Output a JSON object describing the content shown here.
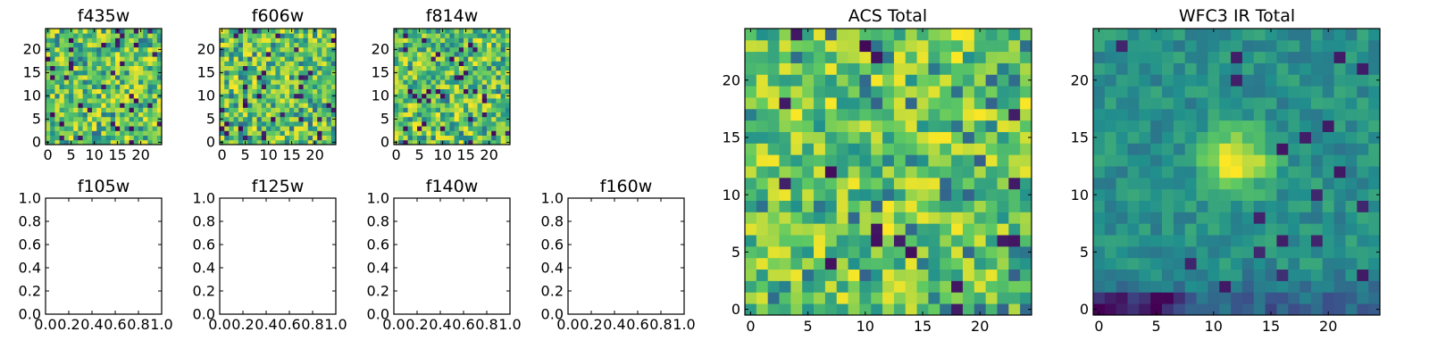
{
  "figure": {
    "type": "figure",
    "description_free": true
  },
  "colormap": {
    "name": "viridis",
    "stops": [
      "#440154",
      "#3b528b",
      "#21908d",
      "#5ec962",
      "#fde725"
    ]
  },
  "chart_data": [
    {
      "id": "f435w",
      "type": "heatmap",
      "title": "f435w",
      "grid": [
        25,
        25
      ],
      "seed": 11,
      "dist": "noise",
      "xlim": [
        0,
        25
      ],
      "ylim": [
        0,
        25
      ],
      "xticks": [
        "0",
        "5",
        "10",
        "15",
        "20"
      ],
      "yticks": [
        "0",
        "5",
        "10",
        "15",
        "20"
      ]
    },
    {
      "id": "f606w",
      "type": "heatmap",
      "title": "f606w",
      "grid": [
        25,
        25
      ],
      "seed": 23,
      "dist": "noise",
      "xlim": [
        0,
        25
      ],
      "ylim": [
        0,
        25
      ],
      "xticks": [
        "0",
        "5",
        "10",
        "15",
        "20"
      ],
      "yticks": [
        "0",
        "5",
        "10",
        "15",
        "20"
      ]
    },
    {
      "id": "f814w",
      "type": "heatmap",
      "title": "f814w",
      "grid": [
        25,
        25
      ],
      "seed": 37,
      "dist": "noise",
      "xlim": [
        0,
        25
      ],
      "ylim": [
        0,
        25
      ],
      "xticks": [
        "0",
        "5",
        "10",
        "15",
        "20"
      ],
      "yticks": [
        "0",
        "5",
        "10",
        "15",
        "20"
      ]
    },
    {
      "id": "f105w",
      "type": "empty",
      "title": "f105w",
      "xlim": [
        0,
        1
      ],
      "ylim": [
        0,
        1
      ],
      "xticks": [
        "0.0",
        "0.2",
        "0.4",
        "0.6",
        "0.8",
        "1.0"
      ],
      "yticks": [
        "0.0",
        "0.2",
        "0.4",
        "0.6",
        "0.8",
        "1.0"
      ]
    },
    {
      "id": "f125w",
      "type": "empty",
      "title": "f125w",
      "xlim": [
        0,
        1
      ],
      "ylim": [
        0,
        1
      ],
      "xticks": [
        "0.0",
        "0.2",
        "0.4",
        "0.6",
        "0.8",
        "1.0"
      ],
      "yticks": [
        "0.0",
        "0.2",
        "0.4",
        "0.6",
        "0.8",
        "1.0"
      ]
    },
    {
      "id": "f140w",
      "type": "empty",
      "title": "f140w",
      "xlim": [
        0,
        1
      ],
      "ylim": [
        0,
        1
      ],
      "xticks": [
        "0.0",
        "0.2",
        "0.4",
        "0.6",
        "0.8",
        "1.0"
      ],
      "yticks": [
        "0.0",
        "0.2",
        "0.4",
        "0.6",
        "0.8",
        "1.0"
      ]
    },
    {
      "id": "f160w",
      "type": "empty",
      "title": "f160w",
      "xlim": [
        0,
        1
      ],
      "ylim": [
        0,
        1
      ],
      "xticks": [
        "0.0",
        "0.2",
        "0.4",
        "0.6",
        "0.8",
        "1.0"
      ],
      "yticks": [
        "0.0",
        "0.2",
        "0.4",
        "0.6",
        "0.8",
        "1.0"
      ]
    },
    {
      "id": "acs_total",
      "type": "heatmap",
      "title": "ACS Total",
      "grid": [
        25,
        25
      ],
      "seed": 53,
      "dist": "acs",
      "xlim": [
        0,
        25
      ],
      "ylim": [
        0,
        25
      ],
      "xticks": [
        "0",
        "5",
        "10",
        "15",
        "20"
      ],
      "yticks": [
        "0",
        "5",
        "10",
        "15",
        "20"
      ]
    },
    {
      "id": "wfc3_ir_total",
      "type": "heatmap",
      "title": "WFC3 IR Total",
      "grid": [
        25,
        25
      ],
      "seed": 71,
      "dist": "ir",
      "source_peak": [
        12,
        13
      ],
      "dark_corner": [
        1,
        0
      ],
      "xlim": [
        0,
        25
      ],
      "ylim": [
        0,
        25
      ],
      "xticks": [
        "0",
        "5",
        "10",
        "15",
        "20"
      ],
      "yticks": [
        "0",
        "5",
        "10",
        "15",
        "20"
      ]
    }
  ]
}
